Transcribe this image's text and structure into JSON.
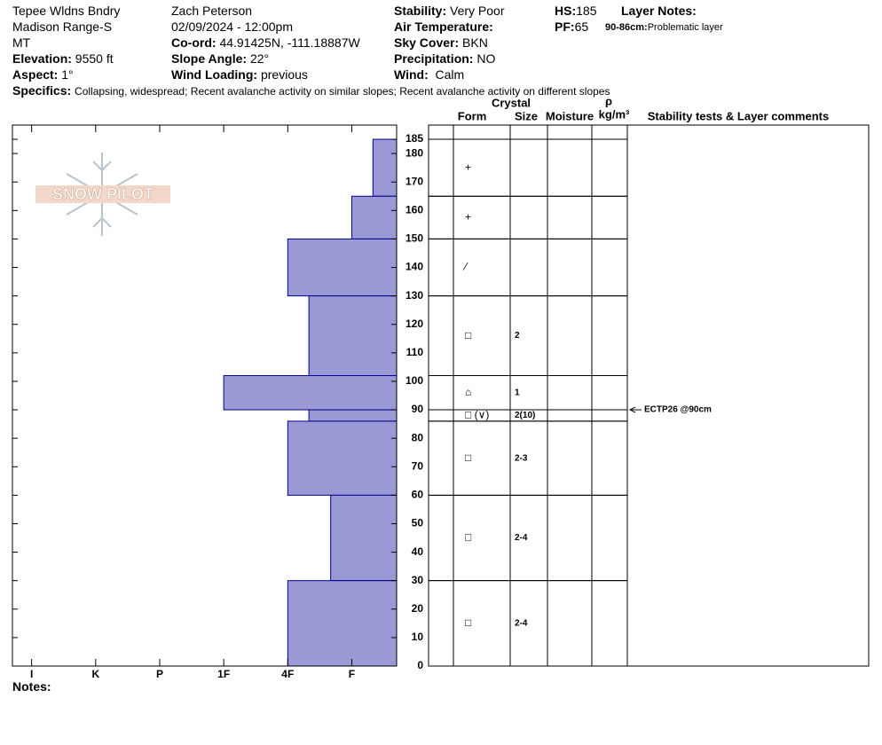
{
  "header": {
    "location": "Tepee Wldns Bndry",
    "range": "Madison Range-S",
    "state": "MT",
    "elevation": {
      "label": "Elevation:",
      "value": "9550 ft"
    },
    "aspect": {
      "label": "Aspect:",
      "value": "1°"
    },
    "observer": "Zach Peterson",
    "datetime": "02/09/2024 - 12:00pm",
    "coord": {
      "label": "Co-ord:",
      "value": "44.91425N, -111.18887W"
    },
    "slope_angle": {
      "label": "Slope Angle:",
      "value": "22°"
    },
    "wind_loading": {
      "label": "Wind Loading:",
      "value": "previous"
    },
    "stability": {
      "label": "Stability:",
      "value": "Very Poor"
    },
    "air_temperature": {
      "label": "Air Temperature:"
    },
    "sky_cover": {
      "label": "Sky Cover:",
      "value": "BKN"
    },
    "precipitation": {
      "label": "Precipitation:",
      "value": "NO"
    },
    "wind": {
      "label": "Wind:",
      "value": "Calm"
    },
    "hs": {
      "label": "HS:",
      "value": "185"
    },
    "pf": {
      "label": "PF:",
      "value": "65"
    },
    "layer_notes": {
      "label": "Layer Notes:",
      "depth": "90-86cm:",
      "text": "Problematic layer"
    },
    "specifics": {
      "label": "Specifics:",
      "value": "Collapsing, widespread; Recent avalanche activity on similar slopes; Recent avalanche activity on different slopes"
    },
    "notes_label": "Notes:",
    "logo": "SNOW PILOT"
  },
  "chart_data": {
    "type": "snow-profile",
    "ylim": [
      0,
      190
    ],
    "yticks": [
      0,
      10,
      20,
      30,
      40,
      50,
      60,
      70,
      80,
      90,
      100,
      110,
      120,
      130,
      140,
      150,
      160,
      170,
      180,
      185
    ],
    "xlim": [
      0.3,
      6.3
    ],
    "xticks": [
      {
        "value": 6,
        "label": "I"
      },
      {
        "value": 5,
        "label": "K"
      },
      {
        "value": 4,
        "label": "P"
      },
      {
        "value": 3,
        "label": "1F"
      },
      {
        "value": 2,
        "label": "4F"
      },
      {
        "value": 1,
        "label": "F"
      }
    ],
    "color": "#9999d6",
    "columns": {
      "crystal": "Crystal",
      "form": "Form",
      "size": "Size",
      "moisture": "Moisture",
      "rho": "ρ",
      "density_unit": "kg/m³",
      "comments": "Stability tests & Layer comments"
    },
    "layers": [
      {
        "top": 185,
        "bottom": 165,
        "hardness": 0.67,
        "form": "+"
      },
      {
        "top": 165,
        "bottom": 150,
        "hardness": 1,
        "form": "+"
      },
      {
        "top": 150,
        "bottom": 130,
        "hardness": 2,
        "form": "⁄"
      },
      {
        "top": 130,
        "bottom": 102,
        "hardness": 1.67,
        "form": "□",
        "size": "2"
      },
      {
        "top": 102,
        "bottom": 90,
        "hardness": 3,
        "form": "⌂",
        "size": "1"
      },
      {
        "top": 90,
        "bottom": 86,
        "hardness": 1.67,
        "form": "□ (∨)",
        "size": "2(10)"
      },
      {
        "top": 86,
        "bottom": 60,
        "hardness": 2,
        "form": "□",
        "size": "2-3"
      },
      {
        "top": 60,
        "bottom": 30,
        "hardness": 1.33,
        "form": "□",
        "size": "2-4"
      },
      {
        "top": 30,
        "bottom": 0,
        "hardness": 2,
        "form": "□",
        "size": "2-4"
      }
    ],
    "tests": [
      {
        "depth": 90,
        "text": "ECTP26 @90cm"
      }
    ]
  }
}
